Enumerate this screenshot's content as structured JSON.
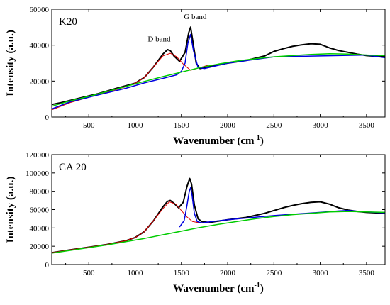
{
  "chart_data": [
    {
      "type": "line",
      "panel_label": "K20",
      "xlabel": "Wavenumber (cm",
      "xlabel_sup": "-1",
      "xlabel_end": ")",
      "ylabel": "Intensity (a.u.)",
      "xlim": [
        100,
        3700
      ],
      "ylim": [
        0,
        60000
      ],
      "xticks": [
        500,
        1000,
        1500,
        2000,
        2500,
        3000,
        3500
      ],
      "yticks": [
        0,
        20000,
        40000,
        60000
      ],
      "annotations": [
        {
          "text": "D band",
          "x": 1260,
          "y": 42000
        },
        {
          "text": "G band",
          "x": 1650,
          "y": 54500
        }
      ],
      "series": [
        {
          "color": "#000000",
          "width": 2,
          "x": [
            100,
            200,
            400,
            600,
            800,
            1000,
            1050,
            1100,
            1200,
            1300,
            1350,
            1380,
            1420,
            1480,
            1540,
            1580,
            1600,
            1630,
            1660,
            1700,
            1800,
            2000,
            2200,
            2400,
            2500,
            2600,
            2700,
            2800,
            2900,
            3000,
            3100,
            3200,
            3300,
            3400,
            3500,
            3600,
            3700
          ],
          "y": [
            7000,
            8000,
            10500,
            13000,
            16000,
            18800,
            20500,
            22000,
            28000,
            35000,
            37500,
            37000,
            34000,
            31000,
            36000,
            47000,
            50000,
            40000,
            30000,
            27000,
            28000,
            30000,
            31500,
            34000,
            36500,
            38000,
            39300,
            40200,
            40800,
            40500,
            38500,
            37000,
            36000,
            35000,
            34200,
            33800,
            33500
          ]
        },
        {
          "color": "#e00000",
          "width": 1,
          "x": [
            100,
            300,
            500,
            700,
            900,
            1000,
            1100,
            1200,
            1300,
            1380,
            1450,
            1520,
            1600,
            1700,
            1800
          ],
          "y": [
            4000,
            8000,
            11000,
            13800,
            16800,
            18800,
            22000,
            28000,
            34000,
            35500,
            33500,
            29500,
            26000,
            27500,
            29000
          ]
        },
        {
          "color": "#0000e0",
          "width": 1.5,
          "x": [
            100,
            300,
            500,
            700,
            900,
            1100,
            1300,
            1450,
            1500,
            1540,
            1570,
            1600,
            1630,
            1680,
            1750,
            2000,
            2500,
            3000,
            3500,
            3700
          ],
          "y": [
            4500,
            8500,
            11000,
            13500,
            16000,
            19000,
            21500,
            23500,
            25500,
            30000,
            41000,
            46000,
            37000,
            27500,
            27000,
            30000,
            33500,
            34000,
            34500,
            33000
          ]
        },
        {
          "color": "#00cc00",
          "width": 1.5,
          "x": [
            100,
            300,
            500,
            700,
            900,
            1100,
            1300,
            1500,
            1700,
            1900,
            2100,
            2300,
            2500,
            2700,
            2900,
            3100,
            3300,
            3500,
            3700
          ],
          "y": [
            6000,
            9000,
            11500,
            14200,
            17000,
            19800,
            22500,
            25000,
            27500,
            29500,
            31200,
            32500,
            33500,
            34200,
            34800,
            35200,
            35000,
            34500,
            34200
          ]
        }
      ]
    },
    {
      "type": "line",
      "panel_label": "CA 20",
      "xlabel": "Wavenumber (cm",
      "xlabel_sup": "-1",
      "xlabel_end": ")",
      "ylabel": "Intensity (a.u.)",
      "xlim": [
        100,
        3700
      ],
      "ylim": [
        0,
        120000
      ],
      "xticks": [
        500,
        1000,
        1500,
        2000,
        2500,
        3000,
        3500
      ],
      "yticks": [
        0,
        20000,
        40000,
        60000,
        80000,
        100000,
        120000
      ],
      "annotations": [],
      "series": [
        {
          "color": "#000000",
          "width": 2,
          "x": [
            100,
            300,
            500,
            700,
            900,
            1000,
            1100,
            1200,
            1300,
            1350,
            1380,
            1420,
            1470,
            1520,
            1560,
            1590,
            1610,
            1640,
            1680,
            1720,
            1800,
            2000,
            2200,
            2400,
            2500,
            2600,
            2700,
            2800,
            2900,
            3000,
            3100,
            3200,
            3300,
            3400,
            3500,
            3600,
            3700
          ],
          "y": [
            13000,
            16000,
            19000,
            22000,
            26000,
            29500,
            36000,
            48000,
            63000,
            69000,
            70000,
            67000,
            62000,
            68000,
            85000,
            94000,
            88000,
            65000,
            50000,
            47000,
            46000,
            49000,
            51500,
            56000,
            59000,
            62000,
            64500,
            66500,
            68000,
            68500,
            66000,
            62000,
            59500,
            58000,
            57000,
            56500,
            56000
          ]
        },
        {
          "color": "#e00000",
          "width": 1,
          "x": [
            100,
            300,
            500,
            700,
            900,
            1000,
            1100,
            1200,
            1300,
            1370,
            1440,
            1500,
            1560,
            1620,
            1700,
            1800
          ],
          "y": [
            13000,
            16000,
            19000,
            22000,
            26000,
            29500,
            36000,
            48000,
            61000,
            68500,
            66000,
            59000,
            52000,
            47000,
            45500,
            46000
          ]
        },
        {
          "color": "#0000e0",
          "width": 1.5,
          "x": [
            1480,
            1530,
            1560,
            1585,
            1600,
            1615,
            1640,
            1670,
            1720,
            1800,
            2000,
            2500,
            3000,
            3200,
            3300,
            3500,
            3700
          ],
          "y": [
            41000,
            48000,
            64000,
            80000,
            84000,
            76000,
            56000,
            47000,
            45500,
            46500,
            49000,
            53500,
            57000,
            58500,
            59000,
            57500,
            56500
          ]
        },
        {
          "color": "#00cc00",
          "width": 1.5,
          "x": [
            100,
            300,
            500,
            700,
            900,
            1100,
            1300,
            1500,
            1700,
            1900,
            2100,
            2300,
            2500,
            2700,
            2900,
            3100,
            3300,
            3500,
            3700
          ],
          "y": [
            12500,
            15500,
            18500,
            21500,
            25000,
            28500,
            32500,
            36500,
            40500,
            44000,
            47000,
            50000,
            52500,
            54500,
            56000,
            57500,
            58000,
            57500,
            57000
          ]
        }
      ]
    }
  ]
}
